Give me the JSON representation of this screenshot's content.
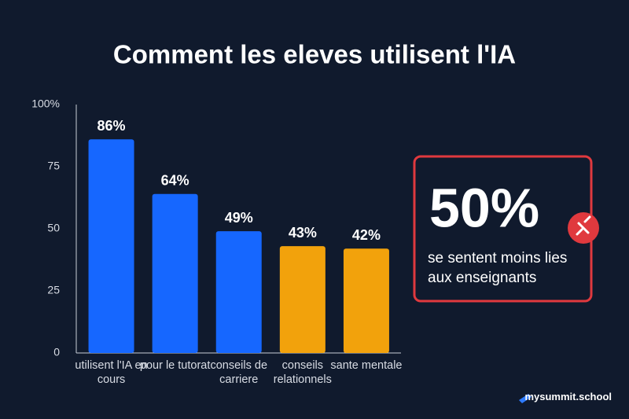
{
  "chart_data": {
    "type": "bar",
    "title": "Comment les eleves utilisent l'IA",
    "categories": [
      "utilisent l'IA en cours",
      "pour le tutorat",
      "conseils de carriere",
      "conseils relationnels",
      "sante mentale"
    ],
    "values": [
      86,
      64,
      49,
      43,
      42
    ],
    "value_labels": [
      "86%",
      "64%",
      "49%",
      "43%",
      "42%"
    ],
    "colors": [
      "#1667ff",
      "#1667ff",
      "#1667ff",
      "#f2a20c",
      "#f2a20c"
    ],
    "ylim": [
      0,
      100
    ],
    "yticks": [
      0,
      25,
      50,
      75,
      {
        "value": 100,
        "label": "100%"
      }
    ],
    "grid": false,
    "callout": {
      "value": 50,
      "label": "50%",
      "text": "se sentent moins lies aux enseignants",
      "color": "#e0393e"
    }
  },
  "footer": {
    "brand": "mysummit.school"
  }
}
